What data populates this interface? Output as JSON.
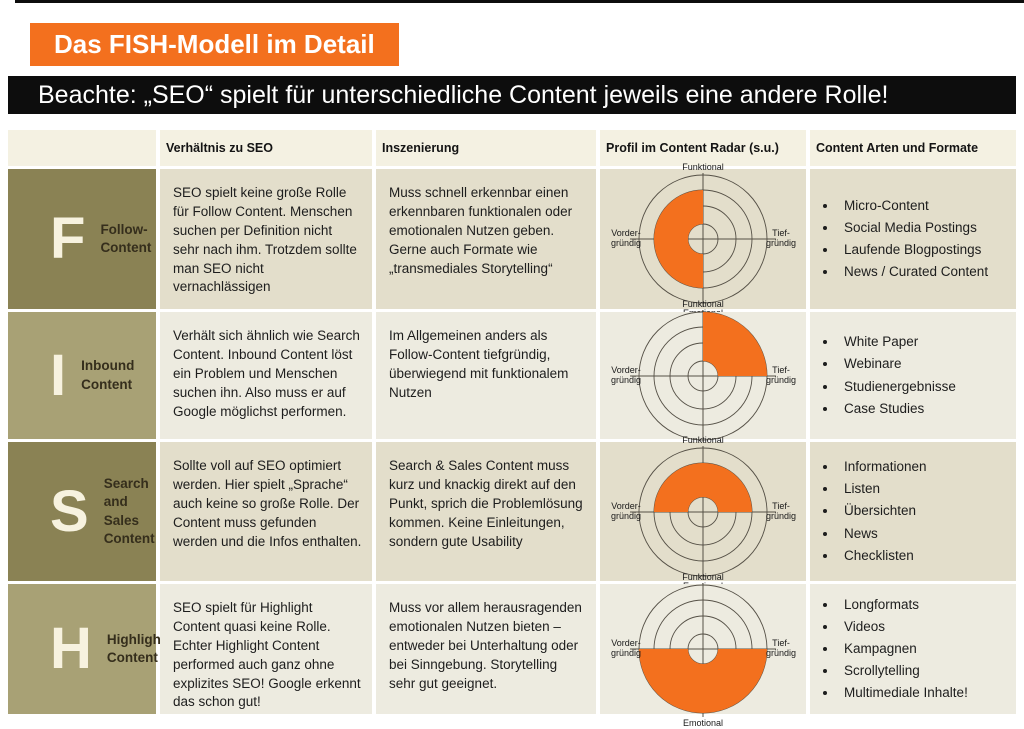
{
  "header": {
    "title": "Das FISH-Modell im Detail",
    "banner": "Beachte: „SEO“ spielt für unterschiedliche Content jeweils eine andere Rolle!"
  },
  "colors": {
    "orange": "#F3701E",
    "olive-dark": "#8A8254",
    "olive-light": "#A8A175",
    "row-dark": "#E3DECB",
    "row-light": "#EDEBE0",
    "header-bg": "#F4F1E2",
    "radar-line": "#555046"
  },
  "radar": {
    "rings": [
      15,
      33,
      49,
      64
    ],
    "labels": {
      "top": "Funktional",
      "bottom": "Emotional",
      "left": [
        "Vorder-",
        "gründig"
      ],
      "right": [
        "Tief-",
        "gründig"
      ]
    }
  },
  "table": {
    "columns": [
      "",
      "Verhältnis zu SEO",
      "Inszenierung",
      "Profil im Content Radar (s.u.)",
      "Content Arten und Formate"
    ],
    "rows": [
      {
        "letter": "F",
        "name": "Follow-\nContent",
        "seo": "SEO spielt keine große Rolle für Follow Content. Menschen suchen per Definition nicht sehr nach ihm. Trotzdem sollte man SEO nicht vernachlässigen",
        "inszenierung": "Muss schnell erkennbar einen erkennbaren funktionalen oder emotionalen Nutzen geben. Gerne auch Formate wie „transmediales Storytelling“",
        "radar": {
          "start": 180,
          "end": 360,
          "outer": 49
        },
        "formats": [
          "Micro-Content",
          "Social Media Postings",
          "Laufende Blogpostings",
          "News / Curated Content"
        ]
      },
      {
        "letter": "I",
        "name": "Inbound\nContent",
        "seo": "Verhält sich ähnlich wie Search Content. Inbound Content löst ein Problem und Menschen suchen ihn. Also muss er auf Google möglichst performen.",
        "inszenierung": "Im Allgemeinen anders als Follow-Content tiefgründig, überwiegend mit funktionalem Nutzen",
        "radar": {
          "start": 0,
          "end": 90,
          "outer": 64
        },
        "formats": [
          "White Paper",
          "Webinare",
          "Studienergebnisse",
          "Case Studies"
        ]
      },
      {
        "letter": "S",
        "name": "Search and\nSales Content",
        "seo": "Sollte voll auf SEO optimiert werden. Hier spielt „Sprache“ auch keine so große Rolle. Der Content muss gefunden werden und die Infos enthalten.",
        "inszenierung": "Search & Sales Content muss kurz und knackig direkt auf den Punkt, sprich die Problemlösung kommen. Keine Einleitungen, sondern gute Usability",
        "radar": {
          "start": 270,
          "end": 450,
          "outer": 49
        },
        "formats": [
          "Informationen",
          "Listen",
          "Übersichten",
          "News",
          "Checklisten"
        ]
      },
      {
        "letter": "H",
        "name": "Highlight\nContent",
        "seo": "SEO spielt für Highlight Content quasi keine Rolle. Echter Highlight Content performed auch ganz ohne explizites SEO! Google erkennt das schon gut!",
        "inszenierung": "Muss vor allem herausragenden emotionalen Nutzen bieten – entweder bei Unterhaltung oder bei Sinngebung. Storytelling sehr gut geeignet.",
        "radar": {
          "start": 90,
          "end": 270,
          "outer": 64
        },
        "formats": [
          "Longformats",
          "Videos",
          "Kampagnen",
          "Scrollytelling",
          "Multimediale Inhalte!"
        ]
      }
    ]
  }
}
